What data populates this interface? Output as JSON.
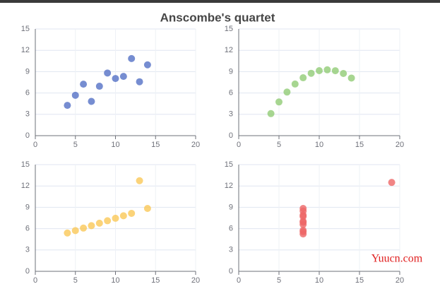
{
  "title": "Anscombe's quartet",
  "watermark": "Yuucn.com",
  "chart_data": [
    {
      "type": "scatter",
      "color": "#5470c6",
      "grid": true,
      "x": [
        10,
        8,
        13,
        9,
        11,
        14,
        6,
        4,
        12,
        7,
        5
      ],
      "values": [
        8.04,
        6.95,
        7.58,
        8.81,
        8.33,
        9.96,
        7.24,
        4.26,
        10.84,
        4.82,
        5.68
      ],
      "xlim": [
        0,
        20
      ],
      "xticks": [
        0,
        5,
        10,
        15,
        20
      ],
      "ylim": [
        0,
        15
      ],
      "yticks": [
        0,
        3,
        6,
        9,
        12,
        15
      ]
    },
    {
      "type": "scatter",
      "color": "#91cc75",
      "grid": true,
      "x": [
        10,
        8,
        13,
        9,
        11,
        14,
        6,
        4,
        12,
        7,
        5
      ],
      "values": [
        9.14,
        8.14,
        8.74,
        8.77,
        9.26,
        8.1,
        6.13,
        3.1,
        9.13,
        7.26,
        4.74
      ],
      "xlim": [
        0,
        20
      ],
      "xticks": [
        0,
        5,
        10,
        15,
        20
      ],
      "ylim": [
        0,
        15
      ],
      "yticks": [
        0,
        3,
        6,
        9,
        12,
        15
      ]
    },
    {
      "type": "scatter",
      "color": "#fac858",
      "grid": true,
      "x": [
        10,
        8,
        13,
        9,
        11,
        14,
        6,
        4,
        12,
        7,
        5
      ],
      "values": [
        7.46,
        6.77,
        12.74,
        7.11,
        7.81,
        8.84,
        6.08,
        5.39,
        8.15,
        6.42,
        5.73
      ],
      "xlim": [
        0,
        20
      ],
      "xticks": [
        0,
        5,
        10,
        15,
        20
      ],
      "ylim": [
        0,
        15
      ],
      "yticks": [
        0,
        3,
        6,
        9,
        12,
        15
      ]
    },
    {
      "type": "scatter",
      "color": "#ee6666",
      "grid": true,
      "x": [
        8,
        8,
        8,
        8,
        8,
        8,
        8,
        19,
        8,
        8,
        8
      ],
      "values": [
        6.58,
        5.76,
        7.71,
        8.84,
        8.47,
        7.04,
        5.25,
        12.5,
        5.56,
        7.91,
        6.89
      ],
      "xlim": [
        0,
        20
      ],
      "xticks": [
        0,
        5,
        10,
        15,
        20
      ],
      "ylim": [
        0,
        15
      ],
      "yticks": [
        0,
        3,
        6,
        9,
        12,
        15
      ]
    }
  ]
}
